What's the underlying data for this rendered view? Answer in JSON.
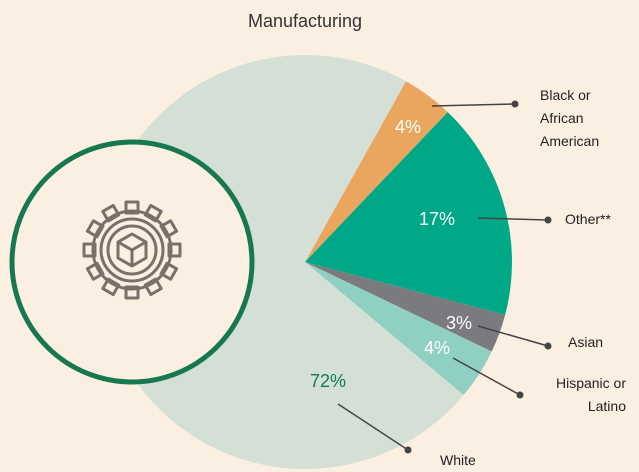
{
  "chart_data": {
    "type": "pie",
    "title": "Manufacturing",
    "categories": [
      "Black or African American",
      "Other**",
      "Asian",
      "Hispanic or Latino",
      "White"
    ],
    "values": [
      4,
      17,
      3,
      4,
      72
    ],
    "value_labels": [
      "4%",
      "17%",
      "3%",
      "4%",
      "72%"
    ],
    "colors": [
      "#eaa65e",
      "#00a887",
      "#7a7b7e",
      "#8fd0c3",
      "#d4e0d6"
    ]
  }
}
